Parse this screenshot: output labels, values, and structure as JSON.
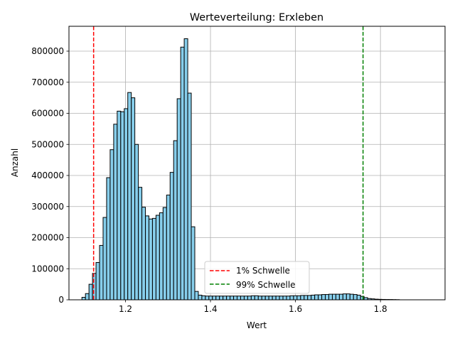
{
  "chart_data": {
    "type": "bar",
    "title": "Werteverteilung: Erxleben",
    "xlabel": "Wert",
    "ylabel": "Anzahl",
    "xlim": [
      1.067,
      1.952
    ],
    "ylim": [
      0,
      880000
    ],
    "xticks": [
      1.2,
      1.4,
      1.6,
      1.8
    ],
    "xtick_labels": [
      "1.2",
      "1.4",
      "1.6",
      "1.8"
    ],
    "yticks": [
      0,
      100000,
      200000,
      300000,
      400000,
      500000,
      600000,
      700000,
      800000
    ],
    "ytick_labels": [
      "0",
      "100000",
      "200000",
      "300000",
      "400000",
      "500000",
      "600000",
      "700000",
      "800000"
    ],
    "grid": true,
    "bar_color": "#87CEEB",
    "bar_edge_color": "#000000",
    "bin_start": 1.0975,
    "bin_width": 0.0083,
    "values": [
      8000,
      20000,
      50000,
      85000,
      120000,
      175000,
      265000,
      393000,
      483000,
      565000,
      607000,
      605000,
      615000,
      667000,
      650000,
      500000,
      362000,
      298000,
      270000,
      260000,
      262000,
      272000,
      280000,
      297000,
      337000,
      410000,
      512000,
      647000,
      813000,
      840000,
      665000,
      235000,
      27000,
      15000,
      13000,
      12000,
      12000,
      12000,
      12000,
      12000,
      12000,
      12000,
      12000,
      12000,
      12000,
      12000,
      12000,
      12000,
      13000,
      13000,
      12000,
      12000,
      12000,
      12000,
      12000,
      12000,
      12000,
      12000,
      12000,
      13000,
      13000,
      13000,
      14000,
      14000,
      14000,
      15000,
      16000,
      16000,
      17000,
      17000,
      18000,
      18000,
      18000,
      18000,
      19000,
      19000,
      18000,
      17000,
      15000,
      11000,
      7000,
      4000,
      3000,
      2000,
      1500,
      1200,
      1000,
      900,
      700,
      500
    ],
    "vlines": [
      {
        "x": 1.125,
        "color": "#FF0000",
        "style": "dashed",
        "label": "1% Schwelle"
      },
      {
        "x": 1.759,
        "color": "#008000",
        "style": "dashed",
        "label": "99% Schwelle"
      }
    ],
    "legend_placement": "lower-center"
  }
}
